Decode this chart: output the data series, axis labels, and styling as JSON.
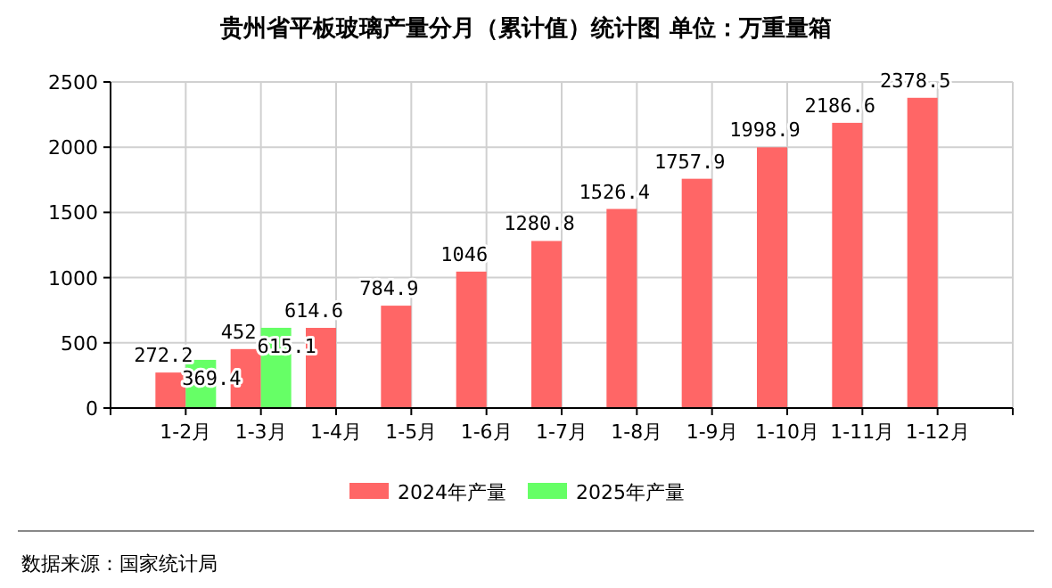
{
  "chart_data": {
    "type": "bar",
    "title": "贵州省平板玻璃产量分月（累计值）统计图 单位：万重量箱",
    "categories": [
      "1-2月",
      "1-3月",
      "1-4月",
      "1-5月",
      "1-6月",
      "1-7月",
      "1-8月",
      "1-9月",
      "1-10月",
      "1-11月",
      "1-12月"
    ],
    "series": [
      {
        "name": "2024年产量",
        "color": "#ff6666",
        "values": [
          272.2,
          452,
          614.6,
          784.9,
          1046,
          1280.8,
          1526.4,
          1757.9,
          1998.9,
          2186.6,
          2378.5
        ]
      },
      {
        "name": "2025年产量",
        "color": "#66ff66",
        "values": [
          369.4,
          615.1,
          null,
          null,
          null,
          null,
          null,
          null,
          null,
          null,
          null
        ]
      }
    ],
    "ylim": [
      0,
      2500
    ],
    "yticks": [
      0,
      500,
      1000,
      1500,
      2000,
      2500
    ],
    "grid": true,
    "data_labels": true,
    "legend": "bottom",
    "annotations": [
      "数据来源：国家统计局"
    ]
  }
}
